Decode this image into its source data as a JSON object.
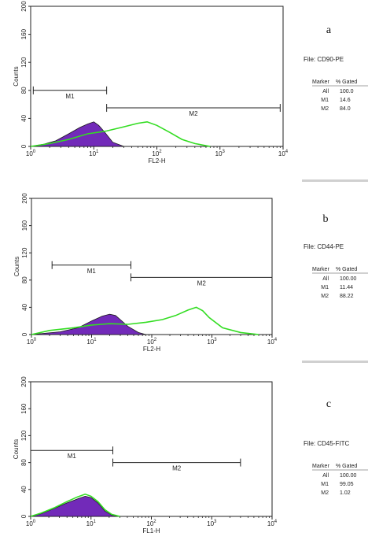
{
  "chart_data": [
    {
      "type": "area",
      "panel_label": "a",
      "xlabel": "FL2-H",
      "ylabel": "Counts",
      "xscale": "log",
      "xlim": [
        1,
        10000
      ],
      "ylim": [
        0,
        200
      ],
      "x_ticks": [
        {
          "base": "10",
          "exp": "0"
        },
        {
          "base": "10",
          "exp": "1"
        },
        {
          "base": "10",
          "exp": "2"
        },
        {
          "base": "10",
          "exp": "3"
        },
        {
          "base": "10",
          "exp": "4"
        }
      ],
      "y_ticks": [
        "0",
        "40",
        "80",
        "120",
        "160",
        "200"
      ],
      "markers": [
        {
          "name": "M1",
          "start": 1.1,
          "end": 16,
          "y": 80
        },
        {
          "name": "M2",
          "start": 16,
          "end": 9000,
          "y": 55
        }
      ],
      "series": [
        {
          "color": "#6a1fb5",
          "x": [
            1,
            1.6,
            2.5,
            4,
            6,
            8,
            10,
            12,
            15,
            20,
            30
          ],
          "y": [
            0,
            3,
            8,
            18,
            27,
            32,
            35,
            30,
            20,
            6,
            0
          ]
        },
        {
          "color": "#33dd22",
          "x": [
            1,
            2,
            4,
            8,
            16,
            30,
            50,
            70,
            100,
            160,
            250,
            400,
            700
          ],
          "y": [
            0,
            4,
            10,
            18,
            22,
            28,
            33,
            35,
            30,
            20,
            10,
            4,
            0
          ]
        }
      ],
      "stats": {
        "file": "File: CD90-PE",
        "header": [
          "Marker",
          "% Gated"
        ],
        "rows": [
          [
            "All",
            "100.0"
          ],
          [
            "M1",
            "14.6"
          ],
          [
            "M2",
            "84.0"
          ]
        ]
      }
    },
    {
      "type": "area",
      "panel_label": "b",
      "xlabel": "FL2-H",
      "ylabel": "Counts",
      "xscale": "log",
      "xlim": [
        1,
        10000
      ],
      "ylim": [
        0,
        200
      ],
      "x_ticks": [
        {
          "base": "10",
          "exp": "0"
        },
        {
          "base": "10",
          "exp": "1"
        },
        {
          "base": "10",
          "exp": "2"
        },
        {
          "base": "10",
          "exp": "3"
        },
        {
          "base": "10",
          "exp": "4"
        }
      ],
      "y_ticks": [
        "0",
        "40",
        "80",
        "120",
        "160",
        "200"
      ],
      "markers": [
        {
          "name": "M1",
          "start": 2.2,
          "end": 45,
          "y": 102
        },
        {
          "name": "M2",
          "start": 45,
          "end": 10000,
          "y": 84
        }
      ],
      "series": [
        {
          "color": "#6a1fb5",
          "x": [
            1,
            3,
            6,
            10,
            15,
            20,
            25,
            30,
            40,
            60,
            80
          ],
          "y": [
            0,
            4,
            10,
            20,
            27,
            30,
            28,
            22,
            12,
            3,
            0
          ]
        },
        {
          "color": "#33dd22",
          "x": [
            1,
            2,
            5,
            10,
            20,
            40,
            80,
            150,
            250,
            400,
            550,
            700,
            900,
            1500,
            3000,
            6000
          ],
          "y": [
            0,
            6,
            10,
            14,
            16,
            15,
            18,
            22,
            28,
            36,
            40,
            35,
            25,
            10,
            3,
            0
          ]
        }
      ],
      "stats": {
        "file": "File: CD44-PE",
        "header": [
          "Marker",
          "% Gated"
        ],
        "rows": [
          [
            "All",
            "100.00"
          ],
          [
            "M1",
            "11.44"
          ],
          [
            "M2",
            "88.22"
          ]
        ]
      }
    },
    {
      "type": "area",
      "panel_label": "c",
      "xlabel": "FL1-H",
      "ylabel": "Counts",
      "xscale": "log",
      "xlim": [
        1,
        10000
      ],
      "ylim": [
        0,
        200
      ],
      "x_ticks": [
        {
          "base": "10",
          "exp": "0"
        },
        {
          "base": "10",
          "exp": "1"
        },
        {
          "base": "10",
          "exp": "2"
        },
        {
          "base": "10",
          "exp": "3"
        },
        {
          "base": "10",
          "exp": "4"
        }
      ],
      "y_ticks": [
        "0",
        "40",
        "80",
        "120",
        "160",
        "200"
      ],
      "markers": [
        {
          "name": "M1",
          "start": 1,
          "end": 23,
          "y": 98
        },
        {
          "name": "M2",
          "start": 23,
          "end": 3000,
          "y": 80
        }
      ],
      "series": [
        {
          "color": "#6a1fb5",
          "x": [
            1,
            1.5,
            2.5,
            4,
            6,
            8,
            10,
            13,
            17,
            22,
            30
          ],
          "y": [
            0,
            4,
            12,
            20,
            26,
            30,
            28,
            20,
            8,
            2,
            0
          ]
        },
        {
          "color": "#33dd22",
          "x": [
            1,
            1.5,
            2.5,
            4,
            6,
            8,
            10,
            13,
            17,
            22,
            30
          ],
          "y": [
            0,
            5,
            13,
            22,
            29,
            33,
            30,
            22,
            10,
            3,
            0
          ]
        }
      ],
      "stats": {
        "file": "File: CD45-FITC",
        "header": [
          "Marker",
          "% Gated"
        ],
        "rows": [
          [
            "All",
            "100.00"
          ],
          [
            "M1",
            "99.05"
          ],
          [
            "M2",
            "1.02"
          ]
        ]
      }
    }
  ]
}
